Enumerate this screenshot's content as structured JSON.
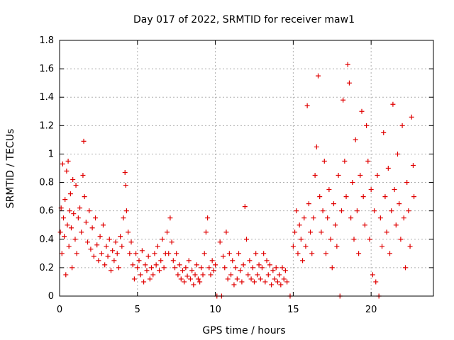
{
  "chart_data": {
    "type": "scatter",
    "title": "Day 017 of 2022, SRMTID for receiver maw1",
    "xlabel": "GPS time / hours",
    "ylabel": "SRMTID / TECUs",
    "xlim": [
      0,
      24
    ],
    "ylim": [
      0,
      1.8
    ],
    "xticks": [
      0,
      5,
      10,
      15,
      20
    ],
    "xtick_labels": [
      "0",
      "5",
      "10",
      "15",
      "20"
    ],
    "yticks": [
      0,
      0.2,
      0.4,
      0.6,
      0.8,
      1.0,
      1.2,
      1.4,
      1.6,
      1.8
    ],
    "ytick_labels": [
      "0",
      "0.2",
      "0.4",
      "0.6",
      "0.8",
      "1",
      "1.2",
      "1.4",
      "1.6",
      "1.8"
    ],
    "grid": true,
    "marker": "+",
    "marker_color": "#e00000",
    "series": [
      {
        "name": "SRMTID",
        "points": [
          [
            0.05,
            0.45
          ],
          [
            0.1,
            0.62
          ],
          [
            0.15,
            0.3
          ],
          [
            0.2,
            0.93
          ],
          [
            0.25,
            0.55
          ],
          [
            0.3,
            0.42
          ],
          [
            0.35,
            0.68
          ],
          [
            0.4,
            0.15
          ],
          [
            0.45,
            0.88
          ],
          [
            0.5,
            0.5
          ],
          [
            0.55,
            0.95
          ],
          [
            0.6,
            0.35
          ],
          [
            0.65,
            0.6
          ],
          [
            0.7,
            0.72
          ],
          [
            0.75,
            0.48
          ],
          [
            0.8,
            0.2
          ],
          [
            0.85,
            0.82
          ],
          [
            0.9,
            0.58
          ],
          [
            1.0,
            0.4
          ],
          [
            1.05,
            0.78
          ],
          [
            1.1,
            0.3
          ],
          [
            1.2,
            0.55
          ],
          [
            1.3,
            0.62
          ],
          [
            1.4,
            0.45
          ],
          [
            1.5,
            0.85
          ],
          [
            1.55,
            1.09
          ],
          [
            1.6,
            0.7
          ],
          [
            1.7,
            0.52
          ],
          [
            1.8,
            0.38
          ],
          [
            1.9,
            0.6
          ],
          [
            2.0,
            0.33
          ],
          [
            2.1,
            0.48
          ],
          [
            2.2,
            0.28
          ],
          [
            2.3,
            0.55
          ],
          [
            2.4,
            0.36
          ],
          [
            2.5,
            0.25
          ],
          [
            2.6,
            0.42
          ],
          [
            2.7,
            0.3
          ],
          [
            2.8,
            0.5
          ],
          [
            2.9,
            0.22
          ],
          [
            3.0,
            0.35
          ],
          [
            3.1,
            0.28
          ],
          [
            3.2,
            0.4
          ],
          [
            3.3,
            0.18
          ],
          [
            3.4,
            0.32
          ],
          [
            3.5,
            0.25
          ],
          [
            3.6,
            0.38
          ],
          [
            3.7,
            0.3
          ],
          [
            3.8,
            0.2
          ],
          [
            3.9,
            0.42
          ],
          [
            4.0,
            0.35
          ],
          [
            4.1,
            0.55
          ],
          [
            4.2,
            0.87
          ],
          [
            4.25,
            0.78
          ],
          [
            4.3,
            0.6
          ],
          [
            4.4,
            0.45
          ],
          [
            4.5,
            0.3
          ],
          [
            4.6,
            0.38
          ],
          [
            4.7,
            0.22
          ],
          [
            4.8,
            0.12
          ],
          [
            4.9,
            0.3
          ],
          [
            5.0,
            0.2
          ],
          [
            5.1,
            0.25
          ],
          [
            5.2,
            0.15
          ],
          [
            5.3,
            0.32
          ],
          [
            5.4,
            0.1
          ],
          [
            5.5,
            0.22
          ],
          [
            5.6,
            0.18
          ],
          [
            5.7,
            0.28
          ],
          [
            5.8,
            0.12
          ],
          [
            5.9,
            0.2
          ],
          [
            6.0,
            0.15
          ],
          [
            6.1,
            0.3
          ],
          [
            6.2,
            0.22
          ],
          [
            6.3,
            0.35
          ],
          [
            6.4,
            0.18
          ],
          [
            6.5,
            0.25
          ],
          [
            6.6,
            0.4
          ],
          [
            6.7,
            0.2
          ],
          [
            6.8,
            0.3
          ],
          [
            6.9,
            0.45
          ],
          [
            7.0,
            0.3
          ],
          [
            7.1,
            0.55
          ],
          [
            7.2,
            0.38
          ],
          [
            7.3,
            0.25
          ],
          [
            7.4,
            0.2
          ],
          [
            7.5,
            0.3
          ],
          [
            7.6,
            0.15
          ],
          [
            7.7,
            0.22
          ],
          [
            7.8,
            0.12
          ],
          [
            7.9,
            0.18
          ],
          [
            8.0,
            0.1
          ],
          [
            8.1,
            0.2
          ],
          [
            8.2,
            0.14
          ],
          [
            8.3,
            0.25
          ],
          [
            8.4,
            0.12
          ],
          [
            8.5,
            0.18
          ],
          [
            8.6,
            0.08
          ],
          [
            8.7,
            0.15
          ],
          [
            8.8,
            0.22
          ],
          [
            8.9,
            0.12
          ],
          [
            9.0,
            0.1
          ],
          [
            9.1,
            0.2
          ],
          [
            9.2,
            0.15
          ],
          [
            9.3,
            0.3
          ],
          [
            9.4,
            0.45
          ],
          [
            9.5,
            0.55
          ],
          [
            9.6,
            0.2
          ],
          [
            9.7,
            0.15
          ],
          [
            9.8,
            0.25
          ],
          [
            9.9,
            0.18
          ],
          [
            10.0,
            0.22
          ],
          [
            10.1,
            0.0
          ],
          [
            10.3,
            0.38
          ],
          [
            10.4,
            0.0
          ],
          [
            10.5,
            0.28
          ],
          [
            10.6,
            0.2
          ],
          [
            10.7,
            0.45
          ],
          [
            10.8,
            0.12
          ],
          [
            10.9,
            0.3
          ],
          [
            11.0,
            0.15
          ],
          [
            11.1,
            0.25
          ],
          [
            11.2,
            0.08
          ],
          [
            11.3,
            0.2
          ],
          [
            11.4,
            0.12
          ],
          [
            11.5,
            0.3
          ],
          [
            11.6,
            0.18
          ],
          [
            11.7,
            0.1
          ],
          [
            11.8,
            0.22
          ],
          [
            11.9,
            0.63
          ],
          [
            12.0,
            0.4
          ],
          [
            12.1,
            0.15
          ],
          [
            12.2,
            0.25
          ],
          [
            12.3,
            0.12
          ],
          [
            12.4,
            0.2
          ],
          [
            12.5,
            0.1
          ],
          [
            12.6,
            0.3
          ],
          [
            12.7,
            0.15
          ],
          [
            12.8,
            0.22
          ],
          [
            12.9,
            0.12
          ],
          [
            13.0,
            0.2
          ],
          [
            13.1,
            0.3
          ],
          [
            13.2,
            0.1
          ],
          [
            13.3,
            0.25
          ],
          [
            13.4,
            0.15
          ],
          [
            13.5,
            0.22
          ],
          [
            13.6,
            0.08
          ],
          [
            13.7,
            0.18
          ],
          [
            13.8,
            0.12
          ],
          [
            13.9,
            0.2
          ],
          [
            14.0,
            0.1
          ],
          [
            14.1,
            0.15
          ],
          [
            14.2,
            0.08
          ],
          [
            14.3,
            0.2
          ],
          [
            14.4,
            0.12
          ],
          [
            14.5,
            0.18
          ],
          [
            14.6,
            0.1
          ],
          [
            14.8,
            0.0
          ],
          [
            15.0,
            0.35
          ],
          [
            15.1,
            0.45
          ],
          [
            15.2,
            0.6
          ],
          [
            15.3,
            0.3
          ],
          [
            15.4,
            0.5
          ],
          [
            15.5,
            0.4
          ],
          [
            15.6,
            0.25
          ],
          [
            15.7,
            0.55
          ],
          [
            15.8,
            0.35
          ],
          [
            15.9,
            1.34
          ],
          [
            16.0,
            0.65
          ],
          [
            16.1,
            0.45
          ],
          [
            16.2,
            0.3
          ],
          [
            16.3,
            0.55
          ],
          [
            16.4,
            0.85
          ],
          [
            16.5,
            1.05
          ],
          [
            16.6,
            1.55
          ],
          [
            16.7,
            0.7
          ],
          [
            16.8,
            0.45
          ],
          [
            16.9,
            0.6
          ],
          [
            17.0,
            0.95
          ],
          [
            17.1,
            0.3
          ],
          [
            17.2,
            0.55
          ],
          [
            17.3,
            0.75
          ],
          [
            17.4,
            0.4
          ],
          [
            17.5,
            0.2
          ],
          [
            17.6,
            0.65
          ],
          [
            17.7,
            0.5
          ],
          [
            17.8,
            0.35
          ],
          [
            17.9,
            0.85
          ],
          [
            18.0,
            0.0
          ],
          [
            18.1,
            0.6
          ],
          [
            18.2,
            1.38
          ],
          [
            18.3,
            0.95
          ],
          [
            18.4,
            0.7
          ],
          [
            18.5,
            1.63
          ],
          [
            18.6,
            1.5
          ],
          [
            18.7,
            0.55
          ],
          [
            18.8,
            0.8
          ],
          [
            18.9,
            0.4
          ],
          [
            19.0,
            1.1
          ],
          [
            19.1,
            0.6
          ],
          [
            19.2,
            0.3
          ],
          [
            19.3,
            0.85
          ],
          [
            19.4,
            1.3
          ],
          [
            19.5,
            0.7
          ],
          [
            19.6,
            0.5
          ],
          [
            19.7,
            1.2
          ],
          [
            19.8,
            0.95
          ],
          [
            19.9,
            0.4
          ],
          [
            20.0,
            0.75
          ],
          [
            20.1,
            0.15
          ],
          [
            20.2,
            0.6
          ],
          [
            20.3,
            0.1
          ],
          [
            20.4,
            0.85
          ],
          [
            20.5,
            0.0
          ],
          [
            20.6,
            0.55
          ],
          [
            20.7,
            0.35
          ],
          [
            20.8,
            1.15
          ],
          [
            20.9,
            0.7
          ],
          [
            21.0,
            0.45
          ],
          [
            21.1,
            0.9
          ],
          [
            21.2,
            0.3
          ],
          [
            21.3,
            0.6
          ],
          [
            21.4,
            1.35
          ],
          [
            21.5,
            0.75
          ],
          [
            21.6,
            0.5
          ],
          [
            21.7,
            1.0
          ],
          [
            21.8,
            0.65
          ],
          [
            21.9,
            0.4
          ],
          [
            22.0,
            1.2
          ],
          [
            22.1,
            0.55
          ],
          [
            22.2,
            0.2
          ],
          [
            22.3,
            0.8
          ],
          [
            22.4,
            0.6
          ],
          [
            22.5,
            0.35
          ],
          [
            22.6,
            1.26
          ],
          [
            22.7,
            0.92
          ],
          [
            22.75,
            0.7
          ]
        ]
      }
    ]
  }
}
